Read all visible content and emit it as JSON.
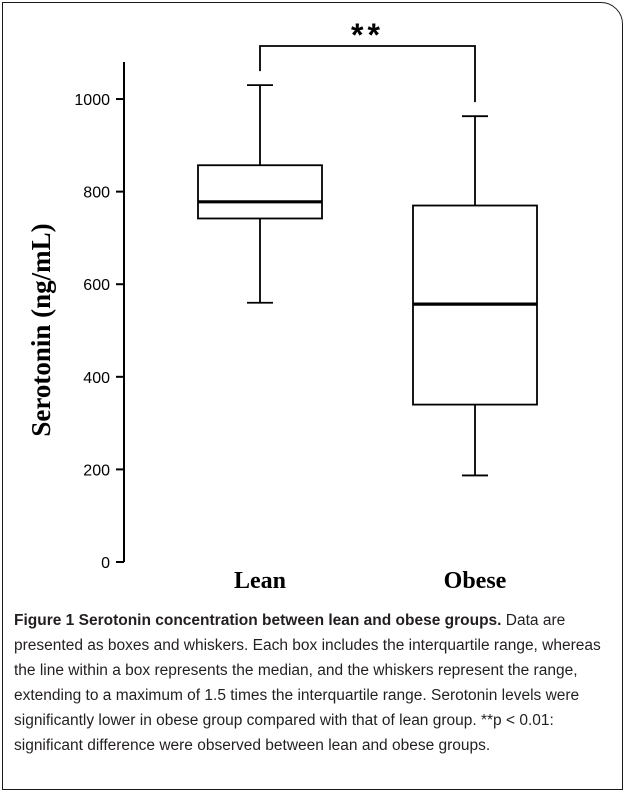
{
  "chart_data": {
    "type": "box",
    "ylabel": "Serotonin (ng/mL)",
    "ylim": [
      0,
      1080
    ],
    "yticks": [
      0,
      200,
      400,
      600,
      800,
      1000
    ],
    "categories": [
      "Lean",
      "Obese"
    ],
    "boxes": [
      {
        "category": "Lean",
        "min": 560,
        "q1": 742,
        "median": 778,
        "q3": 857,
        "max": 1030
      },
      {
        "category": "Obese",
        "min": 187,
        "q1": 340,
        "median": 557,
        "q3": 770,
        "max": 963
      }
    ],
    "significance": {
      "label": "**",
      "between": [
        "Lean",
        "Obese"
      ]
    }
  },
  "caption": {
    "lead": "Figure 1",
    "title": "Serotonin concentration between lean and obese groups.",
    "body": "Data are presented as boxes and whiskers. Each box includes the interquartile range, whereas the line within a box represents the median, and the whiskers represent the range, extending to a maximum of 1.5 times the interquartile range. Serotonin levels were significantly lower in obese group compared with that of lean group. **p < 0.01: significant difference were observed between lean and obese groups."
  }
}
